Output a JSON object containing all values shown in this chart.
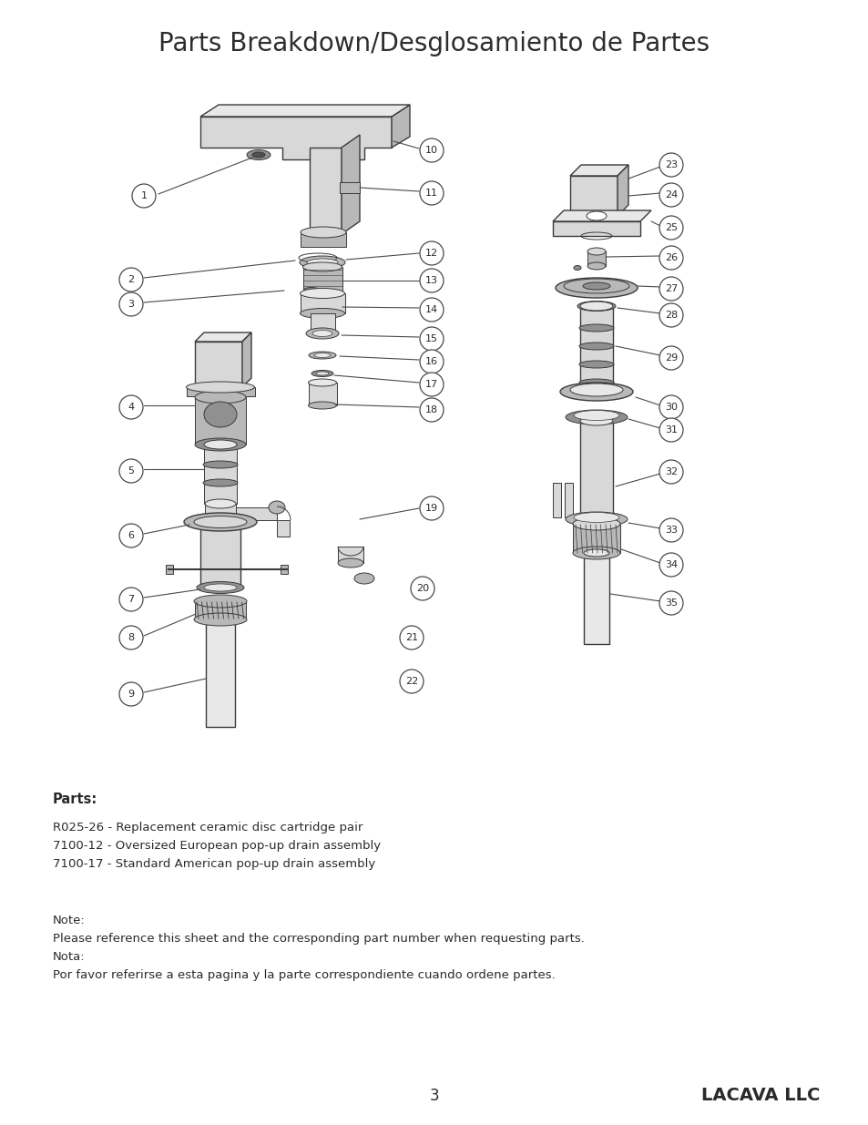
{
  "title": "Parts Breakdown/Desglosamiento de Partes",
  "title_fontsize": 20,
  "title_color": "#2d2d2d",
  "background_color": "#ffffff",
  "parts_header": "Parts:",
  "parts_list": [
    "R025-26 - Replacement ceramic disc cartridge pair",
    "7100-12 - Oversized European pop-up drain assembly",
    "7100-17 - Standard American pop-up drain assembly"
  ],
  "note_lines": [
    "Note:",
    "Please reference this sheet and the corresponding part number when requesting parts.",
    "Nota:",
    "Por favor referirse a esta pagina y la parte correspondiente cuando ordene partes."
  ],
  "page_number": "3",
  "brand": "LACAVA LLC",
  "circle_color": "#ffffff",
  "circle_edge": "#4a4a4a",
  "line_color": "#4a4a4a",
  "drawing_color": "#3a3a3a",
  "fill_dark": "#909090",
  "fill_mid": "#b8b8b8",
  "fill_light": "#d8d8d8",
  "fill_lighter": "#e8e8e8",
  "text_color": "#2a2a2a",
  "label_circle_r": 13
}
